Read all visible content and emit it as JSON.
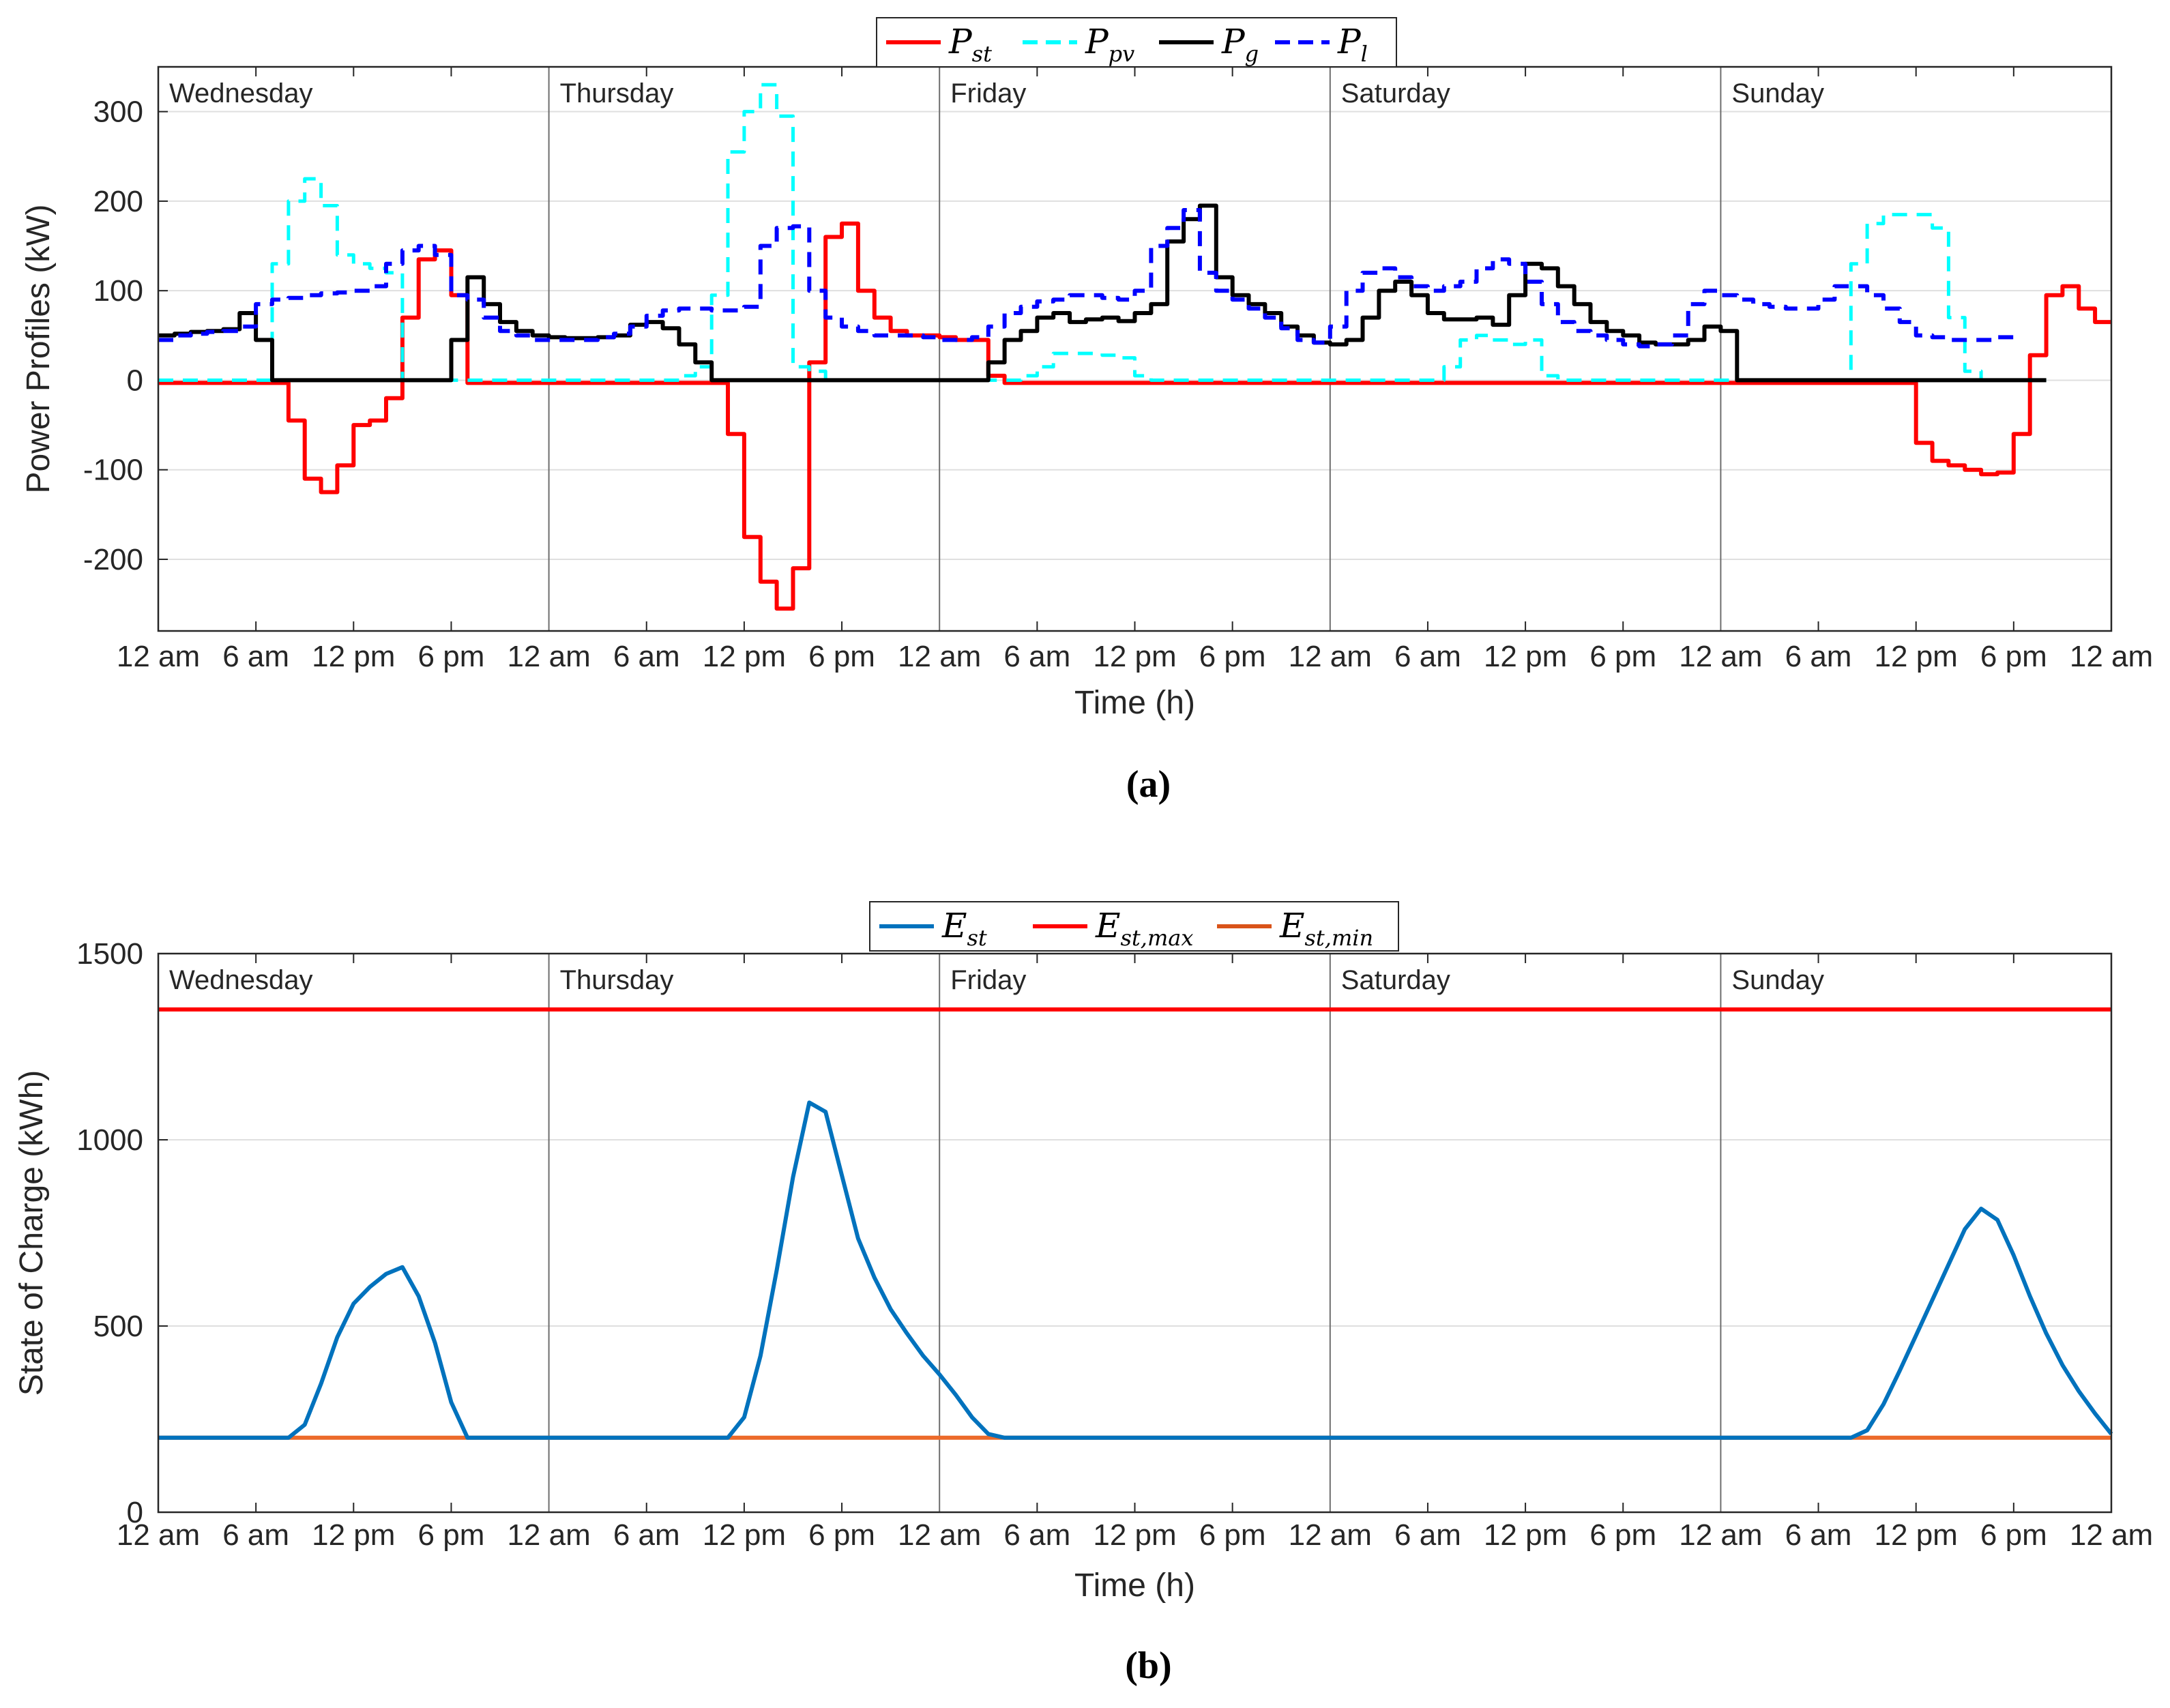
{
  "chart_data": [
    {
      "type": "line",
      "panel_label": "(a)",
      "xlabel": "Time (h)",
      "ylabel": "Power Profiles (kW)",
      "ylim": [
        -280,
        350
      ],
      "yticks": [
        300,
        200,
        100,
        0,
        -100,
        -200
      ],
      "ytick_labels": [
        "300",
        "200",
        "100",
        "0",
        "-100",
        "-200"
      ],
      "xlim": [
        0,
        120
      ],
      "xtick_labels": [
        "12 am",
        "6 am",
        "12 pm",
        "6 pm",
        "12 am",
        "6 am",
        "12 pm",
        "6 pm",
        "12 am",
        "6 am",
        "12 pm",
        "6 pm",
        "12 am",
        "6 am",
        "12 pm",
        "6 pm",
        "12 am",
        "6 am",
        "12 pm",
        "6 pm",
        "12 am"
      ],
      "day_labels": [
        "Wednesday",
        "Thursday",
        "Friday",
        "Saturday",
        "Sunday"
      ],
      "step": true,
      "legend": [
        {
          "base": "P",
          "sub": "st",
          "color": "#ff0000",
          "dash": "solid"
        },
        {
          "base": "P",
          "sub": "pv",
          "color": "#00ffff",
          "dash": "dashed"
        },
        {
          "base": "P",
          "sub": "g",
          "color": "#000000",
          "dash": "solid"
        },
        {
          "base": "P",
          "sub": "l",
          "color": "#0000ff",
          "dash": "dashed"
        }
      ],
      "series": [
        {
          "name": "P_st",
          "color": "#ff0000",
          "width": 6,
          "dash": "",
          "values": [
            -3,
            -3,
            -3,
            -3,
            -3,
            -3,
            -3,
            -3,
            -45,
            -110,
            -125,
            -95,
            -50,
            -45,
            -20,
            70,
            135,
            145,
            95,
            -3,
            -3,
            -3,
            -3,
            -3,
            -3,
            -3,
            -3,
            -3,
            -3,
            -3,
            -3,
            -3,
            -3,
            -3,
            -3,
            -60,
            -175,
            -225,
            -255,
            -210,
            20,
            160,
            175,
            100,
            70,
            55,
            50,
            50,
            48,
            45,
            45,
            5,
            -3,
            -3,
            -3,
            -3,
            -3,
            -3,
            -3,
            -3,
            -3,
            -3,
            -3,
            -3,
            -3,
            -3,
            -3,
            -3,
            -3,
            -3,
            -3,
            -3,
            -3,
            -3,
            -3,
            -3,
            -3,
            -3,
            -3,
            -3,
            -3,
            -3,
            -3,
            -3,
            -3,
            -3,
            -3,
            -3,
            -3,
            -3,
            -3,
            -3,
            -3,
            -3,
            -3,
            -3,
            -3,
            -3,
            -3,
            -3,
            -3,
            -3,
            -3,
            -3,
            -3,
            -3,
            -3,
            -3,
            -70,
            -90,
            -95,
            -100,
            -105,
            -103,
            -60,
            28,
            95,
            105,
            80,
            65
          ]
        },
        {
          "name": "P_pv",
          "color": "#00ffff",
          "width": 5,
          "dash": "22 14",
          "values": [
            0,
            0,
            0,
            0,
            0,
            0,
            0,
            130,
            200,
            225,
            195,
            140,
            130,
            125,
            120,
            0,
            0,
            0,
            0,
            0,
            0,
            0,
            0,
            0,
            0,
            0,
            0,
            0,
            0,
            0,
            0,
            0,
            5,
            15,
            95,
            255,
            300,
            330,
            295,
            15,
            10,
            0,
            0,
            0,
            0,
            0,
            0,
            0,
            0,
            0,
            0,
            0,
            0,
            5,
            15,
            30,
            30,
            30,
            28,
            25,
            5,
            0,
            0,
            0,
            0,
            0,
            0,
            0,
            0,
            0,
            0,
            0,
            0,
            0,
            0,
            0,
            0,
            0,
            0,
            15,
            45,
            50,
            45,
            40,
            45,
            5,
            0,
            0,
            0,
            0,
            0,
            0,
            0,
            0,
            0,
            0,
            0,
            0,
            0,
            0,
            0,
            0,
            0,
            0,
            130,
            175,
            185,
            185,
            185,
            170,
            70,
            10,
            0,
            0,
            0,
            0
          ]
        },
        {
          "name": "P_g",
          "color": "#000000",
          "width": 6,
          "dash": "",
          "values": [
            50,
            52,
            54,
            55,
            57,
            75,
            45,
            0,
            0,
            0,
            0,
            0,
            0,
            0,
            0,
            0,
            0,
            0,
            45,
            115,
            85,
            65,
            55,
            50,
            48,
            47,
            47,
            48,
            50,
            62,
            65,
            58,
            40,
            20,
            0,
            0,
            0,
            0,
            0,
            0,
            0,
            0,
            0,
            0,
            0,
            0,
            0,
            0,
            0,
            0,
            0,
            20,
            45,
            55,
            70,
            75,
            65,
            68,
            70,
            66,
            75,
            85,
            155,
            180,
            195,
            115,
            95,
            85,
            75,
            60,
            50,
            42,
            40,
            45,
            70,
            100,
            110,
            95,
            75,
            68,
            68,
            70,
            62,
            95,
            130,
            125,
            105,
            85,
            65,
            55,
            50,
            42,
            40,
            40,
            45,
            60,
            55,
            0,
            0,
            0,
            0,
            0,
            0,
            0,
            0,
            0,
            0,
            0,
            0,
            0,
            0,
            0,
            0,
            0,
            0,
            0
          ]
        },
        {
          "name": "P_l",
          "color": "#0000ff",
          "width": 6,
          "dash": "22 14",
          "values": [
            45,
            50,
            52,
            54,
            55,
            60,
            85,
            90,
            92,
            95,
            97,
            98,
            100,
            105,
            130,
            145,
            150,
            140,
            95,
            90,
            70,
            55,
            50,
            45,
            45,
            45,
            45,
            48,
            52,
            60,
            72,
            78,
            80,
            80,
            78,
            78,
            82,
            150,
            170,
            172,
            100,
            70,
            60,
            55,
            50,
            50,
            50,
            48,
            45,
            45,
            48,
            60,
            75,
            82,
            88,
            90,
            95,
            95,
            92,
            90,
            100,
            150,
            170,
            190,
            120,
            100,
            90,
            80,
            70,
            58,
            45,
            42,
            60,
            100,
            120,
            125,
            115,
            105,
            100,
            105,
            110,
            125,
            135,
            130,
            110,
            85,
            65,
            55,
            50,
            45,
            40,
            38,
            40,
            50,
            85,
            100,
            95,
            90,
            85,
            82,
            80,
            80,
            90,
            105,
            105,
            95,
            80,
            65,
            50,
            48,
            45,
            45,
            45,
            48
          ]
        }
      ]
    },
    {
      "type": "line",
      "panel_label": "(b)",
      "xlabel": "Time (h)",
      "ylabel": "State of Charge (kWh)",
      "ylim": [
        0,
        1500
      ],
      "yticks": [
        1500,
        1000,
        500,
        0
      ],
      "ytick_labels": [
        "1500",
        "1000",
        "500",
        "0"
      ],
      "xlim": [
        0,
        120
      ],
      "xtick_labels": [
        "12 am",
        "6 am",
        "12 pm",
        "6 pm",
        "12 am",
        "6 am",
        "12 pm",
        "6 pm",
        "12 am",
        "6 am",
        "12 pm",
        "6 pm",
        "12 am",
        "6 am",
        "12 pm",
        "6 pm",
        "12 am",
        "6 am",
        "12 pm",
        "6 pm",
        "12 am"
      ],
      "day_labels": [
        "Wednesday",
        "Thursday",
        "Friday",
        "Saturday",
        "Sunday"
      ],
      "legend": [
        {
          "base": "E",
          "sub": "st",
          "color": "#0072bd"
        },
        {
          "base": "E",
          "sub": "st,max",
          "color": "#ff0000"
        },
        {
          "base": "E",
          "sub": "st,min",
          "color": "#d95319"
        }
      ],
      "series": [
        {
          "name": "E_st,max",
          "color": "#ff0000",
          "width": 6,
          "x": [
            0,
            120
          ],
          "values": [
            1350,
            1350
          ]
        },
        {
          "name": "E_st,min",
          "color": "#ec6a2a",
          "width": 6,
          "x": [
            0,
            120
          ],
          "values": [
            200,
            200
          ]
        },
        {
          "name": "E_st",
          "color": "#0072bd",
          "width": 6,
          "x": [
            0,
            8,
            9,
            10,
            11,
            12,
            13,
            14,
            15,
            16,
            17,
            18,
            19,
            35,
            36,
            37,
            38,
            39,
            40,
            41,
            42,
            43,
            44,
            45,
            46,
            47,
            48,
            49,
            50,
            51,
            52,
            53,
            104,
            105,
            106,
            107,
            108,
            109,
            110,
            111,
            112,
            113,
            114,
            115,
            116,
            117,
            118,
            119,
            120
          ],
          "values": [
            200,
            200,
            235,
            345,
            470,
            560,
            605,
            640,
            658,
            580,
            455,
            295,
            200,
            200,
            255,
            420,
            650,
            900,
            1100,
            1075,
            905,
            735,
            630,
            545,
            480,
            420,
            370,
            315,
            255,
            210,
            200,
            200,
            200,
            220,
            290,
            380,
            475,
            570,
            665,
            760,
            815,
            785,
            690,
            580,
            480,
            395,
            325,
            265,
            210
          ]
        }
      ]
    }
  ]
}
